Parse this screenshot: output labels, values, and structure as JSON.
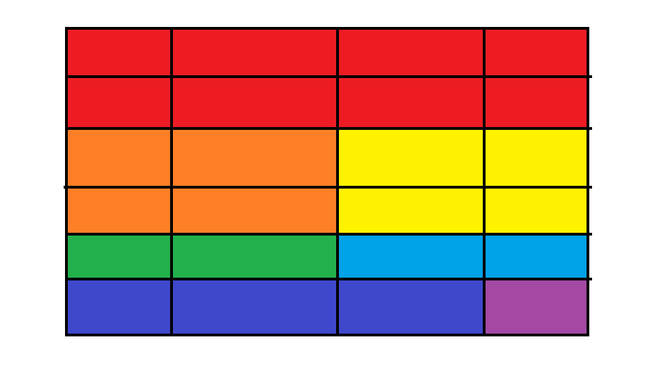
{
  "palette": {
    "red": "#ed1c24",
    "orange": "#ff7f27",
    "yellow": "#fff200",
    "green": "#22b14c",
    "blue": "#00a2e8",
    "indigo": "#3f48cc",
    "purple": "#a349a4",
    "line": "#000000",
    "background": "#ffffff"
  },
  "grid": {
    "rows": 6,
    "cols": 4,
    "cells": [
      [
        "red",
        "red",
        "red",
        "red"
      ],
      [
        "red",
        "red",
        "red",
        "red"
      ],
      [
        "orange",
        "orange",
        "yellow",
        "yellow"
      ],
      [
        "orange",
        "orange",
        "yellow",
        "yellow"
      ],
      [
        "green",
        "green",
        "blue",
        "blue"
      ],
      [
        "indigo",
        "indigo",
        "indigo",
        "purple"
      ]
    ]
  }
}
